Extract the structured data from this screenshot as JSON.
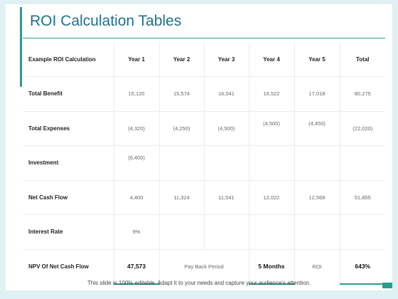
{
  "title": "ROI Calculation Tables",
  "table": {
    "headers": [
      "Example ROI Calculation",
      "Year 1",
      "Year 2",
      "Year 3",
      "Year 4",
      "Year 5",
      "Total"
    ],
    "rows": [
      {
        "label": "Total Benefit",
        "cells": [
          "15,120",
          "15,574",
          "16,041",
          "16,522",
          "17,018",
          "80,275"
        ]
      },
      {
        "label": "Total Expenses",
        "cells": [
          "(4,320)",
          "(4,250)",
          "(4,500)",
          "(4,500)",
          "(4,450)",
          "(22,020)"
        ]
      },
      {
        "label": "Investment",
        "cells": [
          "(6,400)",
          "",
          "",
          "",
          "",
          ""
        ]
      },
      {
        "label": "Net Cash Flow",
        "cells": [
          "4,400",
          "11,324",
          "11,541",
          "12,022",
          "12,568",
          "51,855"
        ]
      },
      {
        "label": "Interest Rate",
        "cells": [
          "9%",
          "",
          "",
          "",
          "",
          ""
        ]
      }
    ],
    "npv": {
      "label": "NPV Of Net Cash Flow",
      "npv_value": "47,573",
      "payback_label": "Pay Back Period",
      "payback_value": "5 Months",
      "roi_label": "ROI",
      "roi_value": "643%"
    }
  },
  "footer": "This slide is 100% editable. Adapt it to your needs and capture your audience's attention.",
  "colors": {
    "accent": "#2a9d8f",
    "title": "#1f6f8b",
    "background": "#dff1f3"
  }
}
